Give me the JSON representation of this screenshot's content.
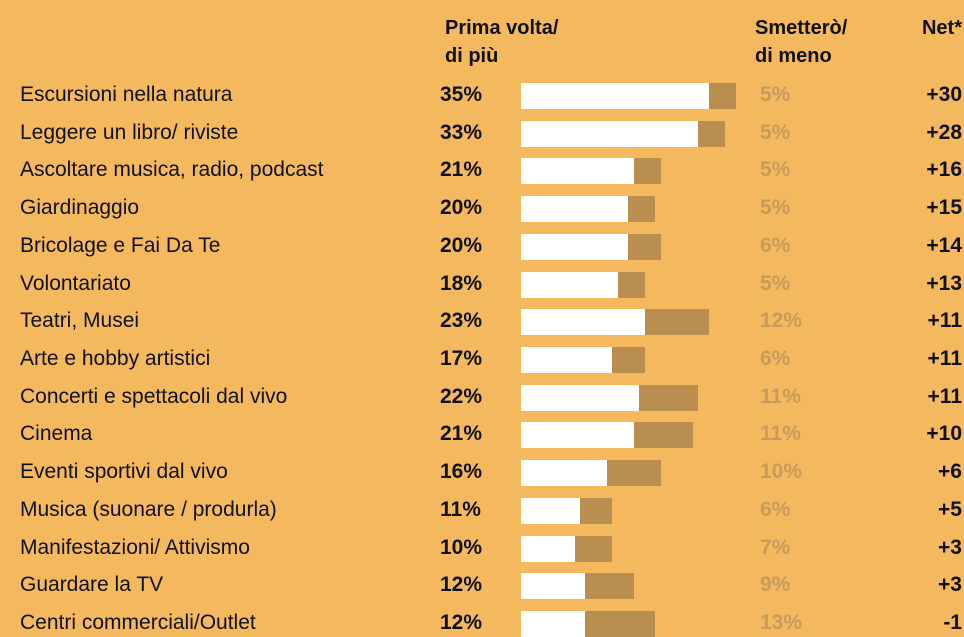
{
  "chart_data": {
    "type": "stacked_bar_horizontal",
    "categories": [
      "Escursioni nella natura",
      "Leggere un libro/ riviste",
      "Ascoltare musica, radio, podcast",
      "Giardinaggio",
      "Bricolage e Fai Da Te",
      "Volontariato",
      "Teatri, Musei",
      "Arte e hobby artistici",
      "Concerti e spettacoli dal vivo",
      "Cinema",
      "Eventi sportivi dal vivo",
      "Musica (suonare / produrla)",
      "Manifestazioni/ Attivismo",
      "Guardare la TV",
      "Centri commerciali/Outlet"
    ],
    "series": [
      {
        "name": "Prima volta/\ndi più",
        "color": "#ffffff",
        "label_color": "#111111",
        "values": [
          35,
          33,
          21,
          20,
          20,
          18,
          23,
          17,
          22,
          21,
          16,
          11,
          10,
          12,
          12
        ],
        "value_labels": [
          "35%",
          "33%",
          "21%",
          "20%",
          "20%",
          "18%",
          "23%",
          "17%",
          "22%",
          "21%",
          "16%",
          "11%",
          "10%",
          "12%",
          "12%"
        ]
      },
      {
        "name": "Smetterò/\ndi meno",
        "color": "#b98e4e",
        "label_color": "#c79b5c",
        "values": [
          5,
          5,
          5,
          5,
          6,
          5,
          12,
          6,
          11,
          11,
          10,
          6,
          7,
          9,
          13
        ],
        "value_labels": [
          "5%",
          "5%",
          "5%",
          "5%",
          "6%",
          "5%",
          "12%",
          "6%",
          "11%",
          "11%",
          "10%",
          "6%",
          "7%",
          "9%",
          "13%"
        ]
      }
    ],
    "net": {
      "name": "Net*",
      "values": [
        30,
        28,
        16,
        15,
        14,
        13,
        11,
        11,
        11,
        10,
        6,
        5,
        3,
        3,
        -1
      ],
      "value_labels": [
        "+30",
        "+28",
        "+16",
        "+15",
        "+14",
        "+13",
        "+11",
        "+11",
        "+11",
        "+10",
        "+6",
        "+5",
        "+3",
        "+3",
        "-1"
      ]
    },
    "background": "#f4b95f"
  }
}
